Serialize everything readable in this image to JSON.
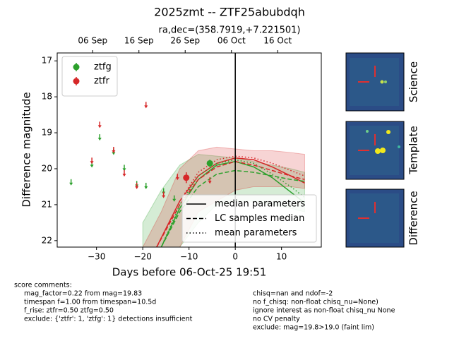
{
  "chart_data": {
    "type": "lightcurve",
    "title": "2025zmt -- ZTF25abubdqh",
    "subtitle": "ra,dec=(358.7919,+7.221501)",
    "x_label": "Days before 06-Oct-25 19:51",
    "y_label": "Difference magnitude",
    "xlim": [
      -38.5,
      18.6
    ],
    "ylim": [
      22.18,
      16.78
    ],
    "xticks": [
      {
        "value": -30,
        "label": "−30"
      },
      {
        "value": -20,
        "label": "−20"
      },
      {
        "value": -10,
        "label": "−10"
      },
      0,
      10
    ],
    "yticks": [
      17,
      18,
      19,
      20,
      21,
      22
    ],
    "x2ticks": [
      {
        "value": -30.83,
        "label": "06 Sep"
      },
      {
        "value": -20.83,
        "label": "16 Sep"
      },
      {
        "value": -10.83,
        "label": "26 Sep"
      },
      {
        "value": -0.83,
        "label": "06 Oct"
      },
      {
        "value": 9.17,
        "label": "16 Oct"
      }
    ],
    "vline": 0,
    "legend": "upper left",
    "series": [
      {
        "type": "band",
        "color": "#2ca02c",
        "x": [
          -20,
          -16,
          -12,
          -8,
          -4,
          0,
          4,
          8,
          12,
          15
        ],
        "low": [
          21.5,
          20.6,
          19.9,
          19.6,
          19.65,
          19.7,
          19.8,
          19.9,
          20.0,
          20.1
        ],
        "high": [
          22.18,
          22.18,
          22.18,
          21.5,
          21.0,
          20.9,
          20.9,
          21.0,
          21.1,
          21.2
        ]
      },
      {
        "type": "band",
        "color": "#d62728",
        "x": [
          -20,
          -16,
          -12,
          -8,
          -4,
          0,
          4,
          8,
          12,
          15
        ],
        "low": [
          22.18,
          21.2,
          20.0,
          19.5,
          19.4,
          19.45,
          19.5,
          19.5,
          19.55,
          19.6
        ],
        "high": [
          22.18,
          22.18,
          22.18,
          21.2,
          20.9,
          20.6,
          20.5,
          20.5,
          20.5,
          20.55
        ]
      },
      {
        "type": "line",
        "color": "#2ca02c",
        "linestyle": "solid",
        "x": [
          -16,
          -12,
          -8,
          -4,
          0,
          4,
          8,
          12,
          15
        ],
        "values": [
          22.18,
          21.1,
          20.3,
          19.9,
          19.8,
          19.95,
          20.25,
          20.65,
          20.95
        ]
      },
      {
        "type": "line",
        "color": "#d62728",
        "linestyle": "solid",
        "x": [
          -17,
          -12,
          -8,
          -4,
          0,
          4,
          8,
          12,
          15
        ],
        "values": [
          22.18,
          20.9,
          20.2,
          19.85,
          19.7,
          19.75,
          19.95,
          20.2,
          20.4
        ]
      },
      {
        "type": "line",
        "color": "#2ca02c",
        "linestyle": "dashed",
        "x": [
          -16,
          -12,
          -8,
          -4,
          0,
          4,
          8,
          12,
          15
        ],
        "values": [
          22.18,
          21.2,
          20.5,
          20.15,
          20.05,
          20.1,
          20.2,
          20.3,
          20.35
        ]
      },
      {
        "type": "line",
        "color": "#d62728",
        "linestyle": "dashed",
        "x": [
          -17,
          -12,
          -8,
          -4,
          0,
          4,
          8,
          12,
          15
        ],
        "values": [
          22.18,
          21.0,
          20.3,
          19.95,
          19.8,
          19.9,
          20.05,
          20.2,
          20.3
        ]
      },
      {
        "type": "line",
        "color": "#2ca02c",
        "linestyle": "dotted",
        "x": [
          -16,
          -12,
          -8,
          -4,
          0,
          4,
          8,
          12,
          15
        ],
        "values": [
          22.18,
          21.0,
          20.2,
          19.85,
          19.75,
          19.85,
          20.15,
          20.5,
          20.8
        ]
      },
      {
        "type": "line",
        "color": "#d62728",
        "linestyle": "dotted",
        "x": [
          -17,
          -12,
          -8,
          -4,
          0,
          4,
          8,
          12,
          15
        ],
        "values": [
          22.18,
          20.9,
          20.1,
          19.75,
          19.65,
          19.7,
          19.85,
          20.05,
          20.2
        ]
      },
      {
        "type": "limit",
        "color": "#2ca02c",
        "x": [
          -35.5,
          -31,
          -29.3,
          -26.3,
          -24,
          -21.3,
          -19.3,
          -15.5,
          -13.2
        ],
        "values": [
          20.35,
          19.85,
          19.1,
          19.5,
          19.95,
          20.4,
          20.45,
          20.6,
          20.8
        ]
      },
      {
        "type": "limit",
        "color": "#d62728",
        "x": [
          -31,
          -29.3,
          -26.3,
          -24,
          -21.3,
          -19.3,
          -15.5,
          -12.5,
          -5.5
        ],
        "values": [
          19.75,
          18.75,
          19.45,
          20.1,
          20.45,
          18.2,
          20.7,
          20.2,
          20.3
        ]
      },
      {
        "type": "errorbar",
        "name": "ztfg",
        "color": "#2ca02c",
        "x": [
          -5.5
        ],
        "values": [
          19.85
        ],
        "errors": [
          0.1
        ]
      },
      {
        "type": "errorbar",
        "name": "ztfr",
        "color": "#d62728",
        "x": [
          -10.6
        ],
        "values": [
          20.25
        ],
        "errors": [
          0.15
        ]
      }
    ],
    "line_styles": [
      {
        "name": "median parameters",
        "linestyle": "solid"
      },
      {
        "name": "LC samples median",
        "linestyle": "dashed"
      },
      {
        "name": "mean parameters",
        "linestyle": "dotted"
      }
    ],
    "cutouts": [
      "Science",
      "Template",
      "Difference"
    ],
    "comments_left": [
      "score comments:",
      "mag_factor=0.22 from mag=19.83",
      "timespan f=1.00 from timespan=10.5d",
      "f_rise: ztfr=0.50 ztfg=0.50",
      "exclude: {'ztfr': 1, 'ztfg': 1} detections insufficient"
    ],
    "comments_right": [
      "chisq=nan and ndof=-2",
      "no f_chisq: non-float chisq_nu=None)",
      "ignore interest as non-float chisq_nu None",
      "no CV penalty",
      "exclude: mag=19.8>19.0 (faint lim)"
    ]
  }
}
